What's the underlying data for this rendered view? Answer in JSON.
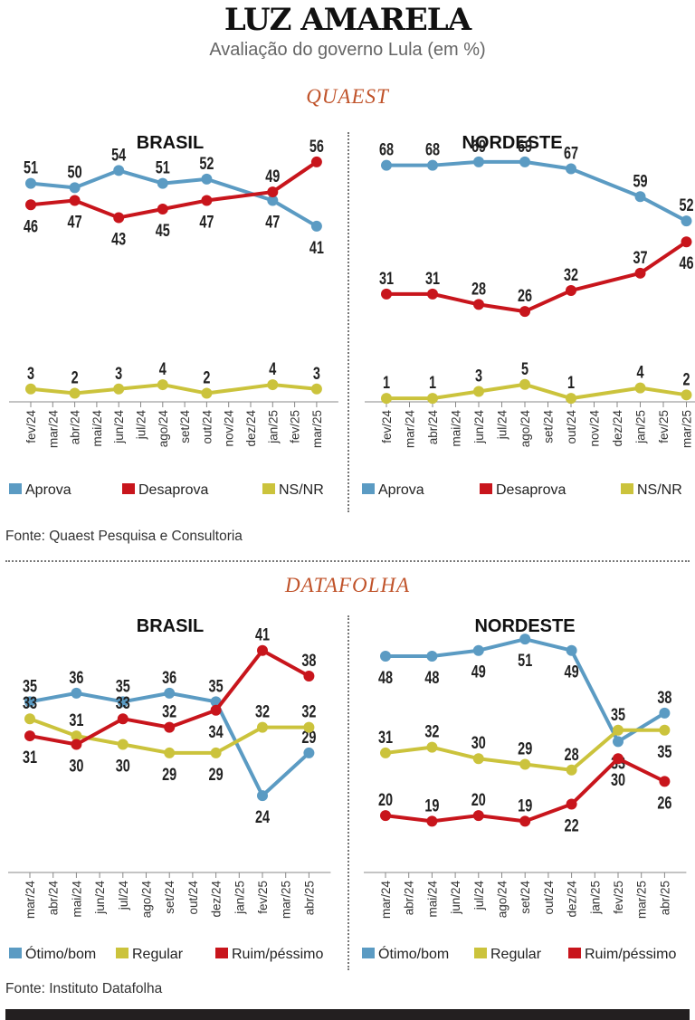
{
  "header": {
    "title": "LUZ AMARELA",
    "subtitle": "Avaliação do governo Lula (em %)"
  },
  "sections": [
    {
      "name": "QUAEST",
      "source": "Fonte: Quaest Pesquisa e Consultoria"
    },
    {
      "name": "DATAFOLHA",
      "source": "Fonte: Instituto Datafolha"
    }
  ],
  "colors": {
    "blue": "#5b9bc3",
    "red": "#c8151c",
    "yellow": "#cbc33c",
    "axis": "#888888"
  },
  "chart_data": [
    {
      "type": "line",
      "title": "BRASIL",
      "categories": [
        "fev/24",
        "mar/24",
        "abr/24",
        "mai/24",
        "jun/24",
        "jul/24",
        "ago/24",
        "set/24",
        "out/24",
        "nov/24",
        "dez/24",
        "jan/25",
        "fev/25",
        "mar/25"
      ],
      "ylim": [
        0,
        60
      ],
      "series": [
        {
          "name": "Aprova",
          "color": "#5b9bc3",
          "x": [
            "fev/24",
            "abr/24",
            "jun/24",
            "ago/24",
            "out/24",
            "jan/25",
            "mar/25"
          ],
          "values": [
            51,
            50,
            54,
            51,
            52,
            47,
            41
          ],
          "label_pos": [
            "above",
            "above",
            "above",
            "above",
            "above",
            "below",
            "below"
          ]
        },
        {
          "name": "Desaprova",
          "color": "#c8151c",
          "x": [
            "fev/24",
            "abr/24",
            "jun/24",
            "ago/24",
            "out/24",
            "jan/25",
            "mar/25"
          ],
          "values": [
            46,
            47,
            43,
            45,
            47,
            49,
            56
          ],
          "label_pos": [
            "below",
            "below",
            "below",
            "below",
            "below",
            "above",
            "above"
          ]
        },
        {
          "name": "NS/NR",
          "color": "#cbc33c",
          "x": [
            "fev/24",
            "abr/24",
            "jun/24",
            "ago/24",
            "out/24",
            "jan/25",
            "mar/25"
          ],
          "values": [
            3,
            2,
            3,
            4,
            2,
            4,
            3
          ],
          "label_pos": [
            "above",
            "above",
            "above",
            "above",
            "above",
            "above",
            "above"
          ]
        }
      ]
    },
    {
      "type": "line",
      "title": "NORDESTE",
      "categories": [
        "fev/24",
        "mar/24",
        "abr/24",
        "mai/24",
        "jun/24",
        "jul/24",
        "ago/24",
        "set/24",
        "out/24",
        "nov/24",
        "dez/24",
        "jan/25",
        "fev/25",
        "mar/25"
      ],
      "ylim": [
        0,
        70
      ],
      "series": [
        {
          "name": "Aprova",
          "color": "#5b9bc3",
          "x": [
            "fev/24",
            "abr/24",
            "jun/24",
            "ago/24",
            "out/24",
            "jan/25",
            "mar/25"
          ],
          "values": [
            68,
            68,
            69,
            69,
            67,
            59,
            52
          ],
          "label_pos": [
            "above",
            "above",
            "above",
            "above",
            "above",
            "above",
            "above"
          ]
        },
        {
          "name": "Desaprova",
          "color": "#c8151c",
          "x": [
            "fev/24",
            "abr/24",
            "jun/24",
            "ago/24",
            "out/24",
            "jan/25",
            "mar/25"
          ],
          "values": [
            31,
            31,
            28,
            26,
            32,
            37,
            46
          ],
          "label_pos": [
            "above",
            "above",
            "above",
            "above",
            "above",
            "above",
            "below"
          ]
        },
        {
          "name": "NS/NR",
          "color": "#cbc33c",
          "x": [
            "fev/24",
            "abr/24",
            "jun/24",
            "ago/24",
            "out/24",
            "jan/25",
            "mar/25"
          ],
          "values": [
            1,
            1,
            3,
            5,
            1,
            4,
            2
          ],
          "label_pos": [
            "above",
            "above",
            "above",
            "above",
            "above",
            "above",
            "above"
          ]
        }
      ]
    },
    {
      "type": "line",
      "title": "BRASIL",
      "categories": [
        "mar/24",
        "abr/24",
        "mai/24",
        "jun/24",
        "jul/24",
        "ago/24",
        "set/24",
        "out/24",
        "dez/24",
        "jan/25",
        "fev/25",
        "mar/25",
        "abr/25"
      ],
      "ylim": [
        15,
        45
      ],
      "series": [
        {
          "name": "Ótimo/bom",
          "color": "#5b9bc3",
          "x": [
            "mar/24",
            "mai/24",
            "jul/24",
            "set/24",
            "dez/24",
            "fev/25",
            "abr/25"
          ],
          "values": [
            35,
            36,
            35,
            36,
            35,
            24,
            29
          ],
          "label_pos": [
            "above",
            "above",
            "above",
            "above",
            "above",
            "below",
            "above"
          ]
        },
        {
          "name": "Regular",
          "color": "#cbc33c",
          "x": [
            "mar/24",
            "mai/24",
            "jul/24",
            "set/24",
            "dez/24",
            "fev/25",
            "abr/25"
          ],
          "values": [
            33,
            31,
            30,
            29,
            29,
            32,
            32
          ],
          "label_pos": [
            "above",
            "above",
            "below",
            "below",
            "below",
            "above",
            "above"
          ]
        },
        {
          "name": "Ruim/péssimo",
          "color": "#c8151c",
          "x": [
            "mar/24",
            "mai/24",
            "jul/24",
            "set/24",
            "dez/24",
            "fev/25",
            "abr/25"
          ],
          "values": [
            31,
            30,
            33,
            32,
            34,
            41,
            38
          ],
          "label_pos": [
            "below",
            "below",
            "above",
            "above",
            "below",
            "above",
            "above"
          ]
        }
      ]
    },
    {
      "type": "line",
      "title": "NORDESTE",
      "categories": [
        "mar/24",
        "abr/24",
        "mai/24",
        "jun/24",
        "jul/24",
        "ago/24",
        "set/24",
        "out/24",
        "dez/24",
        "jan/25",
        "fev/25",
        "mar/25",
        "abr/25"
      ],
      "ylim": [
        10,
        55
      ],
      "series": [
        {
          "name": "Ótimo/bom",
          "color": "#5b9bc3",
          "x": [
            "mar/24",
            "mai/24",
            "jul/24",
            "set/24",
            "dez/24",
            "fev/25",
            "abr/25"
          ],
          "values": [
            48,
            48,
            49,
            51,
            49,
            33,
            38
          ],
          "label_pos": [
            "below",
            "below",
            "below",
            "below",
            "below",
            "below",
            "above"
          ]
        },
        {
          "name": "Regular",
          "color": "#cbc33c",
          "x": [
            "mar/24",
            "mai/24",
            "jul/24",
            "set/24",
            "dez/24",
            "fev/25",
            "abr/25"
          ],
          "values": [
            31,
            32,
            30,
            29,
            28,
            35,
            35
          ],
          "label_pos": [
            "above",
            "above",
            "above",
            "above",
            "above",
            "above",
            "below"
          ]
        },
        {
          "name": "Ruim/péssimo",
          "color": "#c8151c",
          "x": [
            "mar/24",
            "mai/24",
            "jul/24",
            "set/24",
            "dez/24",
            "fev/25",
            "abr/25"
          ],
          "values": [
            20,
            19,
            20,
            19,
            22,
            30,
            26
          ],
          "label_pos": [
            "above",
            "above",
            "above",
            "above",
            "below",
            "below",
            "below"
          ]
        }
      ]
    }
  ]
}
